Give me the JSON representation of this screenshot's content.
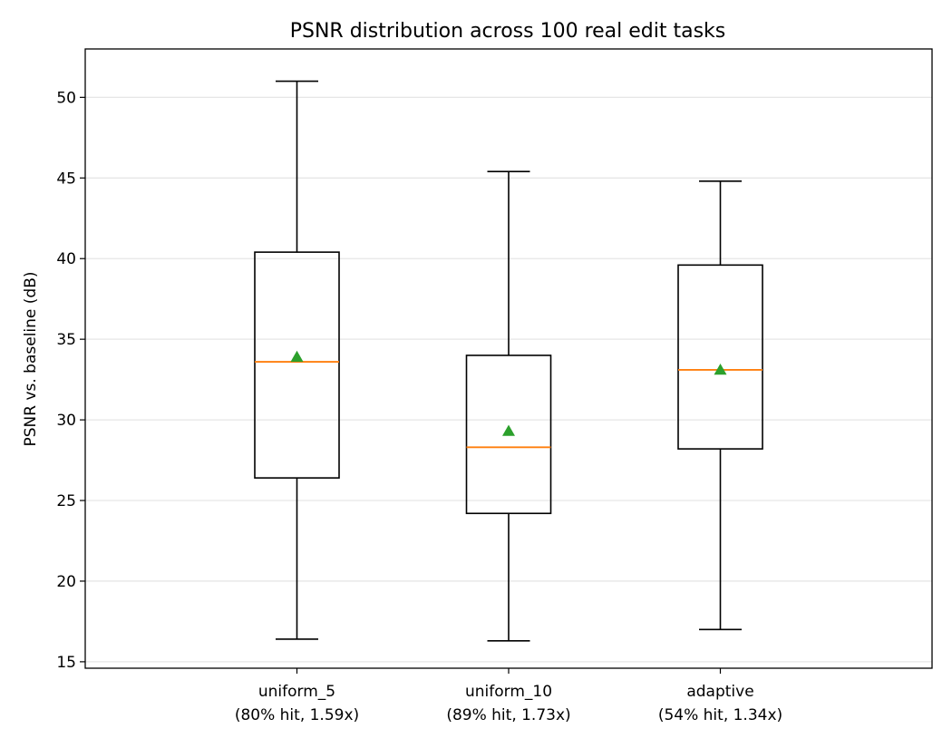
{
  "chart_data": {
    "type": "box",
    "title": "PSNR distribution across 100 real edit tasks",
    "xlabel": "",
    "ylabel": "PSNR vs. baseline (dB)",
    "ylim": [
      14.6,
      53.0
    ],
    "yticks": [
      15,
      20,
      25,
      30,
      35,
      40,
      45,
      50
    ],
    "grid": "y",
    "colors": {
      "box": "#000000",
      "median": "#ff7f0e",
      "mean": "#2ca02c",
      "grid": "#e6e6e6"
    },
    "categories": [
      {
        "line1": "uniform_5",
        "line2": "(80% hit, 1.59x)"
      },
      {
        "line1": "uniform_10",
        "line2": "(89% hit, 1.73x)"
      },
      {
        "line1": "adaptive",
        "line2": "(54% hit, 1.34x)"
      }
    ],
    "boxes": [
      {
        "whisker_low": 16.4,
        "q1": 26.4,
        "median": 33.6,
        "q3": 40.4,
        "whisker_high": 51.0,
        "mean": 33.9
      },
      {
        "whisker_low": 16.3,
        "q1": 24.2,
        "median": 28.3,
        "q3": 34.0,
        "whisker_high": 45.4,
        "mean": 29.3
      },
      {
        "whisker_low": 17.0,
        "q1": 28.2,
        "median": 33.1,
        "q3": 39.6,
        "whisker_high": 44.8,
        "mean": 33.1
      }
    ]
  }
}
